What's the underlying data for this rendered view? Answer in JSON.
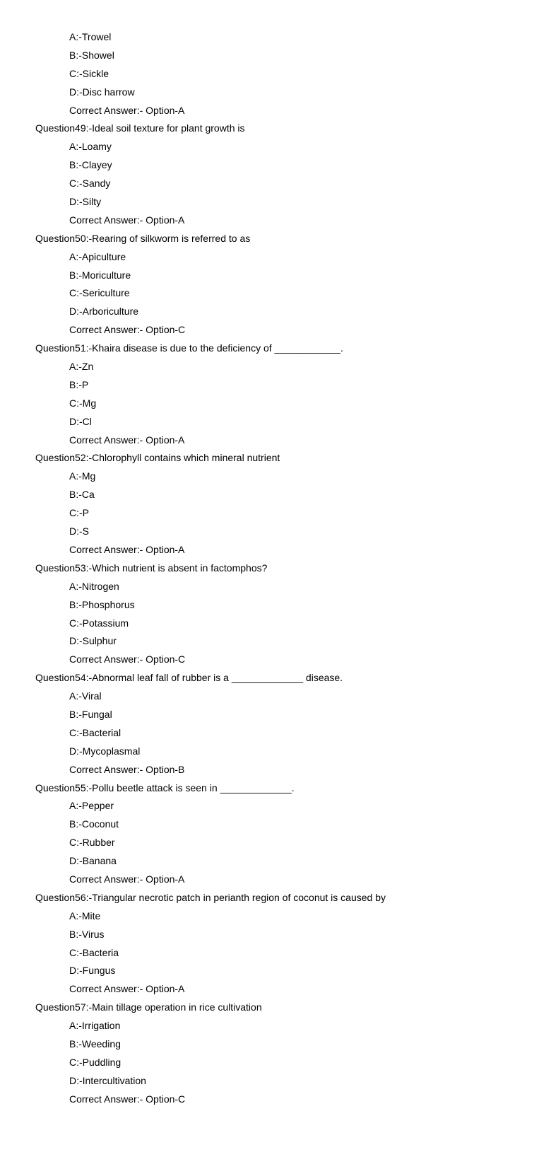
{
  "orphan_options": [
    "A:-Trowel",
    "B:-Showel",
    "C:-Sickle",
    "D:-Disc harrow"
  ],
  "orphan_answer": "Correct Answer:- Option-A",
  "questions": [
    {
      "q": "Question49:-Ideal soil texture for plant growth is",
      "opts": [
        "A:-Loamy",
        "B:-Clayey",
        "C:-Sandy",
        "D:-Silty"
      ],
      "ans": "Correct Answer:- Option-A"
    },
    {
      "q": "Question50:-Rearing of silkworm is referred to as",
      "opts": [
        "A:-Apiculture",
        "B:-Moriculture",
        "C:-Sericulture",
        "D:-Arboriculture"
      ],
      "ans": "Correct Answer:- Option-C"
    },
    {
      "q": "Question51:-Khaira disease is due to the deficiency of ____________.",
      "opts": [
        "A:-Zn",
        "B:-P",
        "C:-Mg",
        "D:-Cl"
      ],
      "ans": "Correct Answer:- Option-A"
    },
    {
      "q": "Question52:-Chlorophyll contains which mineral nutrient",
      "opts": [
        "A:-Mg",
        "B:-Ca",
        "C:-P",
        "D:-S"
      ],
      "ans": "Correct Answer:- Option-A"
    },
    {
      "q": "Question53:-Which nutrient is absent in factomphos?",
      "opts": [
        "A:-Nitrogen",
        "B:-Phosphorus",
        "C:-Potassium",
        "D:-Sulphur"
      ],
      "ans": "Correct Answer:- Option-C"
    },
    {
      "q": "Question54:-Abnormal leaf fall of rubber is a _____________ disease.",
      "opts": [
        "A:-Viral",
        "B:-Fungal",
        "C:-Bacterial",
        "D:-Mycoplasmal"
      ],
      "ans": "Correct Answer:- Option-B"
    },
    {
      "q": "Question55:-Pollu beetle attack is seen in _____________.",
      "opts": [
        "A:-Pepper",
        "B:-Coconut",
        "C:-Rubber",
        "D:-Banana"
      ],
      "ans": "Correct Answer:- Option-A"
    },
    {
      "q": "Question56:-Triangular necrotic patch in perianth region of coconut is caused by",
      "opts": [
        "A:-Mite",
        "B:-Virus",
        "C:-Bacteria",
        "D:-Fungus"
      ],
      "ans": "Correct Answer:- Option-A"
    },
    {
      "q": "Question57:-Main tillage operation in rice cultivation",
      "opts": [
        "A:-Irrigation",
        "B:-Weeding",
        "C:-Puddling",
        "D:-Intercultivation"
      ],
      "ans": "Correct Answer:- Option-C"
    }
  ]
}
